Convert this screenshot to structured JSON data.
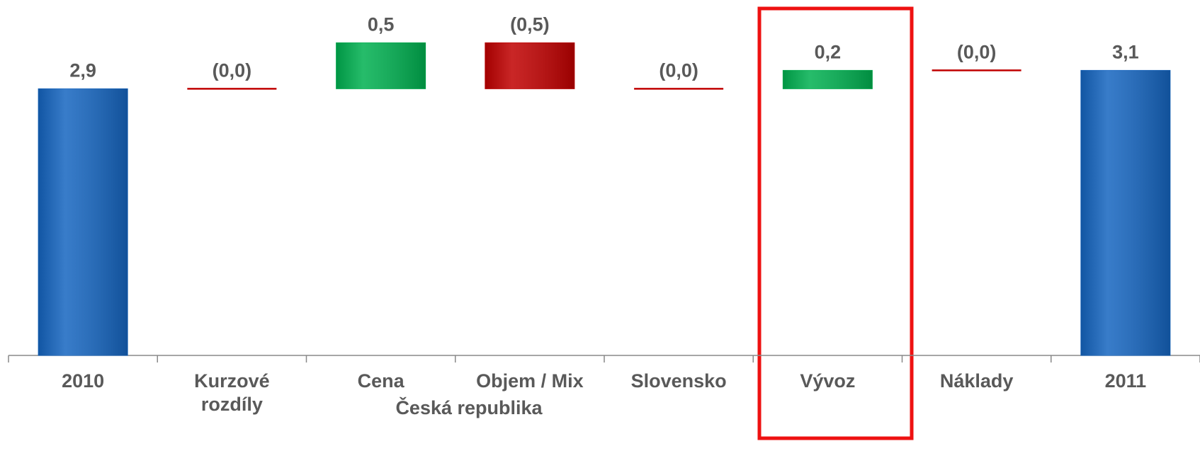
{
  "chart_data": {
    "type": "waterfall",
    "categories": [
      "2010",
      "Kurzové\nrozdíly",
      "Cena",
      "Objem / Mix",
      "Slovensko",
      "Vývoz",
      "Náklady",
      "2011"
    ],
    "values": [
      2.9,
      0,
      0.5,
      -0.5,
      0,
      0.2,
      0,
      3.1
    ],
    "value_labels": [
      "2,9",
      "(0,0)",
      "0,5",
      "(0,5)",
      "(0,0)",
      "0,2",
      "(0,0)",
      "3,1"
    ],
    "group_label": "Česká republika",
    "total_color": "#1565c0",
    "increase_color": "#00b050",
    "decrease_color": "#c00000",
    "ylim": [
      0,
      3.85
    ]
  }
}
